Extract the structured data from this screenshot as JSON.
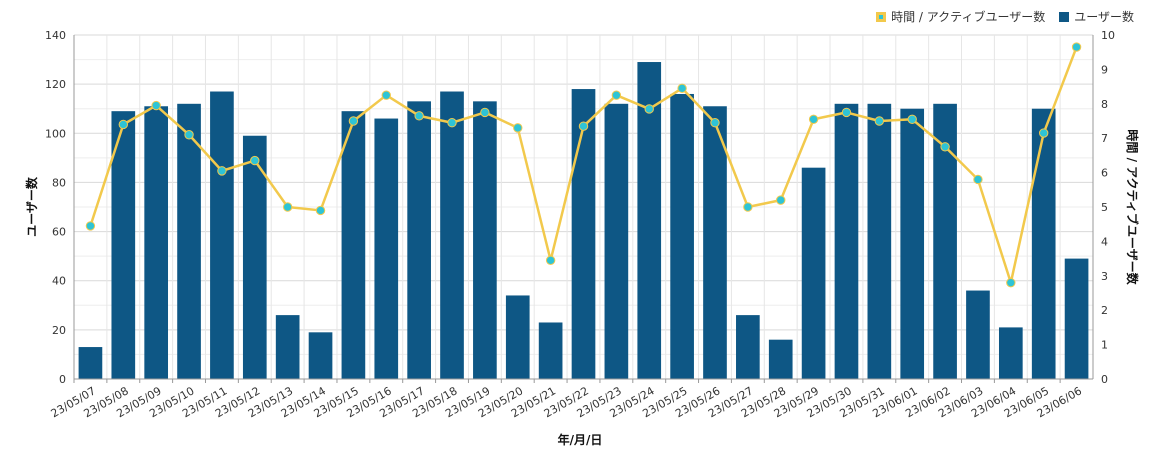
{
  "legend": {
    "line_label": "時間 / アクティブユーザー数",
    "bar_label": "ユーザー数"
  },
  "chart_data": {
    "type": "bar",
    "title": "",
    "xlabel": "年/月/日",
    "ylabel": "ユーザー数",
    "y2label": "時間 / アクティブユーザー数",
    "ylim": [
      0,
      140
    ],
    "y2lim": [
      0,
      10
    ],
    "yticks": [
      0,
      20,
      40,
      60,
      80,
      100,
      120,
      140
    ],
    "y2ticks": [
      0,
      1,
      2,
      3,
      4,
      5,
      6,
      7,
      8,
      9,
      10
    ],
    "grid": true,
    "legend_position": "top-right",
    "categories": [
      "23/05/07",
      "23/05/08",
      "23/05/09",
      "23/05/10",
      "23/05/11",
      "23/05/12",
      "23/05/13",
      "23/05/14",
      "23/05/15",
      "23/05/16",
      "23/05/17",
      "23/05/18",
      "23/05/19",
      "23/05/20",
      "23/05/21",
      "23/05/22",
      "23/05/23",
      "23/05/24",
      "23/05/25",
      "23/05/26",
      "23/05/27",
      "23/05/28",
      "23/05/29",
      "23/05/30",
      "23/05/31",
      "23/06/01",
      "23/06/02",
      "23/06/03",
      "23/06/04",
      "23/06/05",
      "23/06/06"
    ],
    "series": [
      {
        "name": "ユーザー数",
        "type": "bar",
        "axis": "left",
        "color": "#0e5785",
        "values": [
          13,
          109,
          111,
          112,
          117,
          99,
          26,
          19,
          109,
          106,
          113,
          117,
          113,
          34,
          23,
          118,
          112,
          129,
          116,
          111,
          26,
          16,
          86,
          112,
          112,
          110,
          112,
          36,
          21,
          110,
          49
        ]
      },
      {
        "name": "時間 / アクティブユーザー数",
        "type": "line",
        "axis": "right",
        "color": "#f2c94c",
        "marker_color": "#2ec4d6",
        "values": [
          4.45,
          7.4,
          7.95,
          7.1,
          6.05,
          6.35,
          5.0,
          4.9,
          7.5,
          8.25,
          7.65,
          7.45,
          7.75,
          7.3,
          3.45,
          7.35,
          8.25,
          7.85,
          8.45,
          7.45,
          5.0,
          5.2,
          7.55,
          7.75,
          7.5,
          7.55,
          6.75,
          5.8,
          2.8,
          7.15,
          9.65
        ]
      }
    ]
  }
}
